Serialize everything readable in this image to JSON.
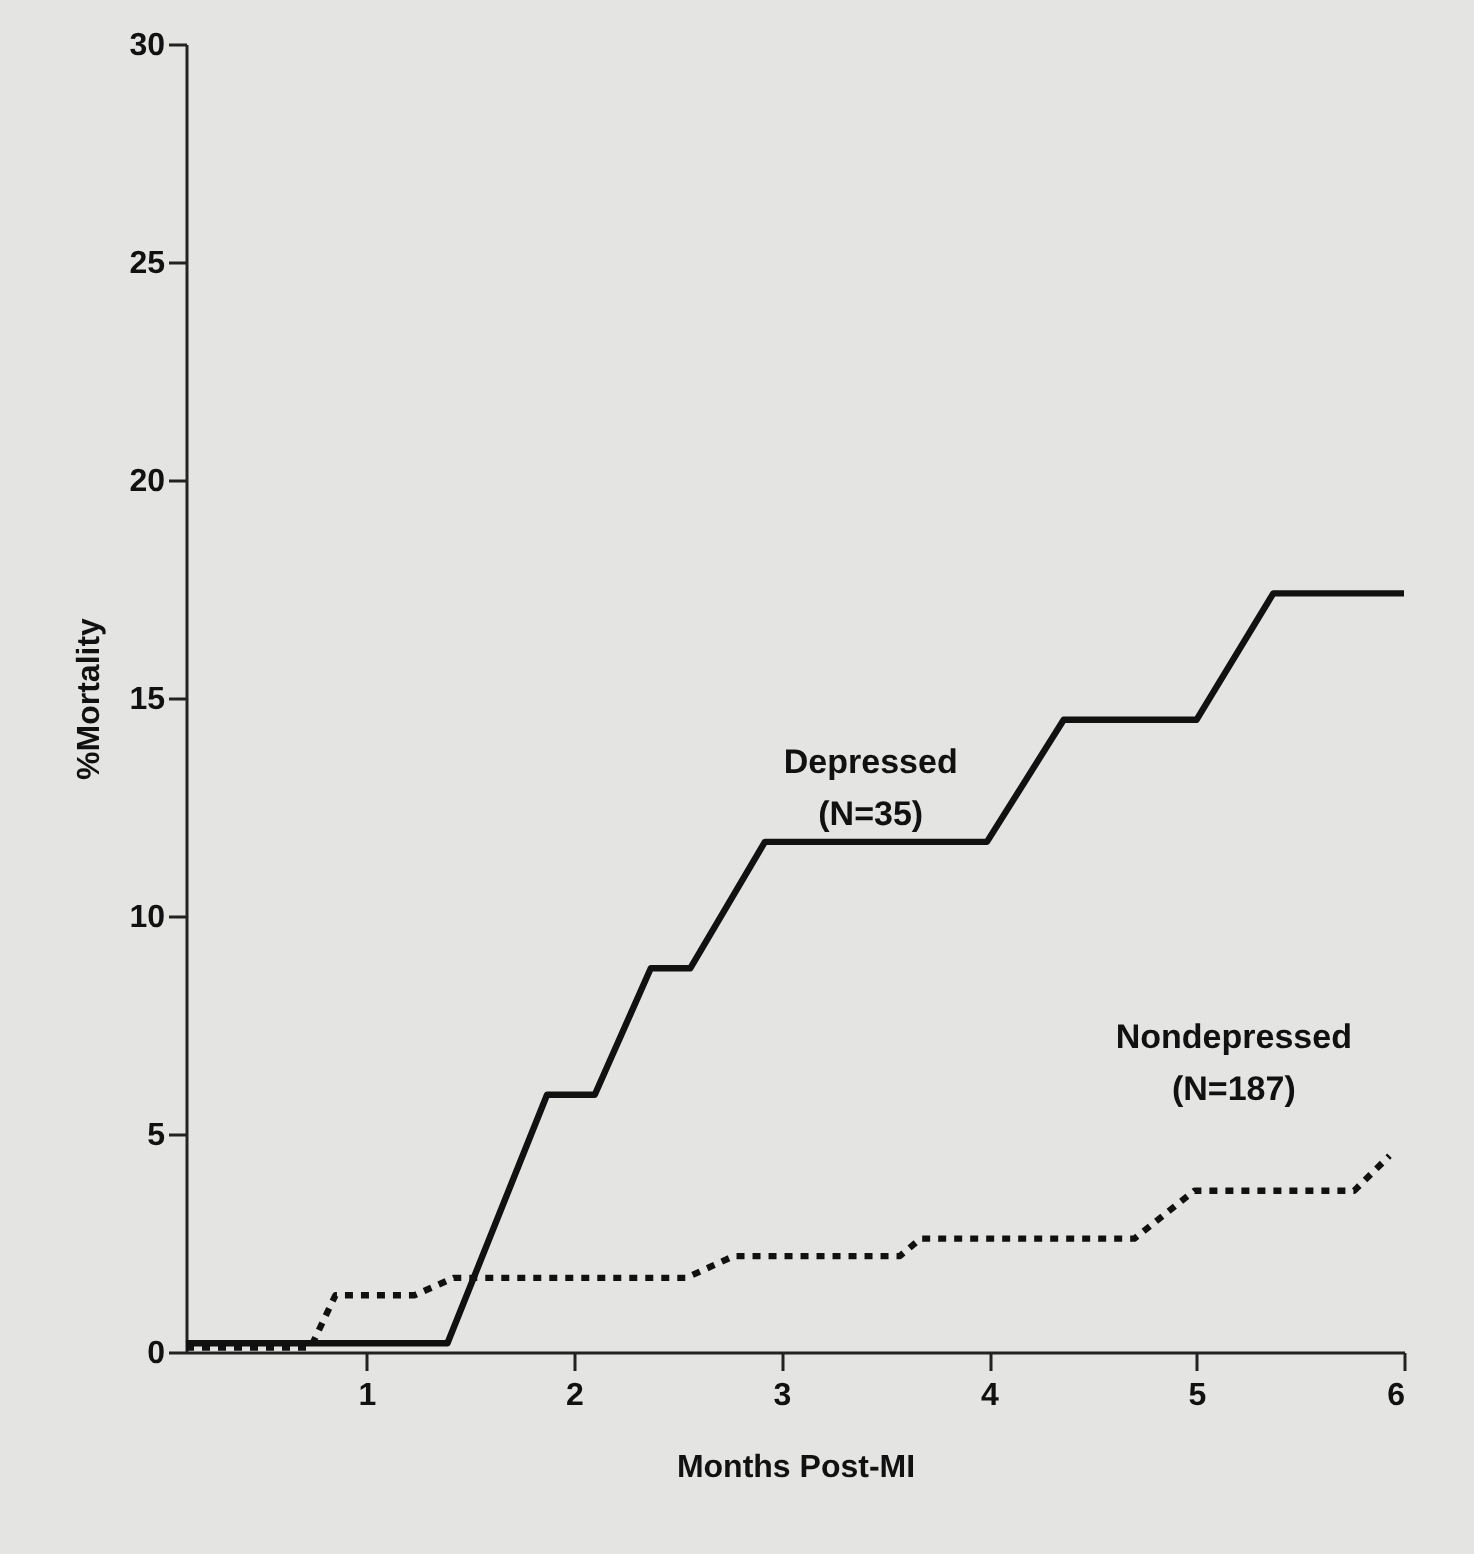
{
  "chart_data": {
    "type": "line",
    "xlabel": "Months Post-MI",
    "ylabel": "%Mortality",
    "xlim": [
      0.13,
      6
    ],
    "xticks": [
      1,
      2,
      3,
      4,
      5,
      6
    ],
    "ylim": [
      0,
      30
    ],
    "yticks": [
      0,
      5,
      10,
      15,
      20,
      25,
      30
    ],
    "grid": false,
    "marker": "none",
    "series": [
      {
        "name": "Depressed\n(N=35)",
        "color": "#111111",
        "line_style": "solid",
        "x": [
          0.13,
          1.39,
          1.87,
          2.1,
          2.37,
          2.56,
          2.92,
          3.99,
          4.36,
          5.0,
          5.37,
          6.0
        ],
        "values": [
          0.2,
          0.2,
          5.9,
          5.9,
          8.8,
          8.8,
          11.7,
          11.7,
          14.5,
          14.5,
          17.4,
          17.4
        ]
      },
      {
        "name": "Nondepressed\n(N=187)",
        "color": "#111111",
        "line_style": "dotted",
        "x": [
          0.13,
          0.73,
          0.85,
          1.23,
          1.42,
          2.54,
          2.77,
          3.57,
          3.67,
          4.7,
          4.99,
          5.76,
          5.93
        ],
        "values": [
          0.1,
          0.1,
          1.3,
          1.3,
          1.7,
          1.7,
          2.2,
          2.2,
          2.6,
          2.6,
          3.7,
          3.7,
          4.5
        ]
      }
    ]
  }
}
